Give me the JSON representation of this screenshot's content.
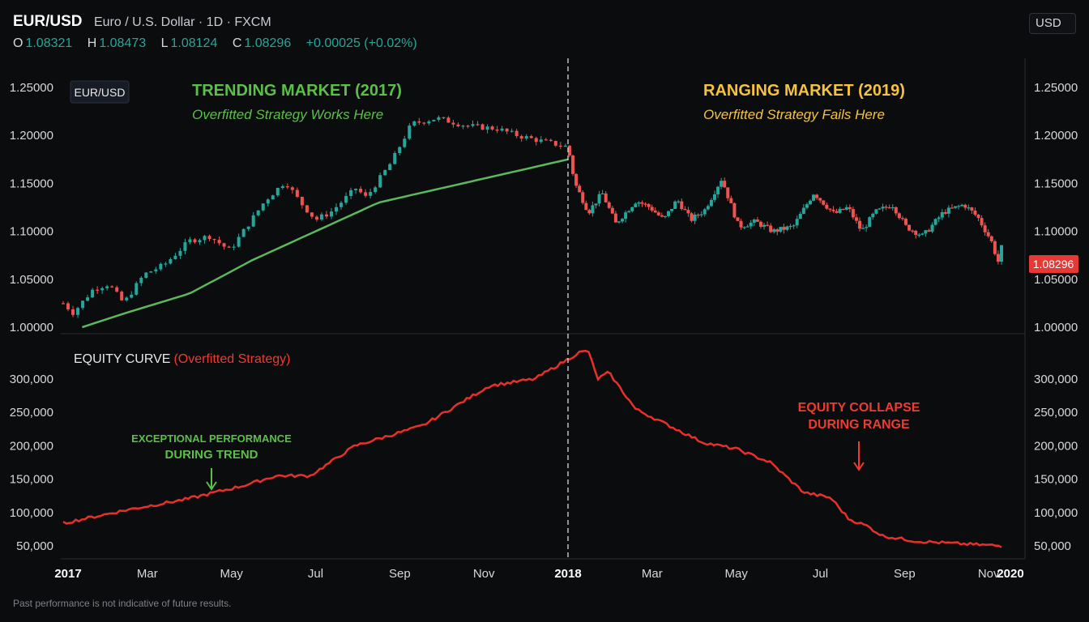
{
  "header": {
    "symbol": "EUR/USD",
    "description": "Euro / U.S. Dollar · 1D · FXCM",
    "ohlc": {
      "o_label": "O",
      "o": "1.08321",
      "h_label": "H",
      "h": "1.08473",
      "l_label": "L",
      "l": "1.08124",
      "c_label": "C",
      "c": "1.08296",
      "change": "+0.00025 (+0.02%)"
    },
    "currency": "USD"
  },
  "colors": {
    "up": "#26a69a",
    "down": "#ef5350",
    "ma": "#5cb85c",
    "equity": "#e8302a",
    "green_text": "#5cbf4a",
    "yellow_text": "#f5c242",
    "red_text": "#ee3b32",
    "background": "#0b0c0e"
  },
  "annotations": {
    "legend_tag": "EUR/USD",
    "trend_title": "TRENDING MARKET (2017)",
    "trend_sub": "Overfitted Strategy Works Here",
    "range_title": "RANGING MARKET (2019)",
    "range_sub": "Overfitted Strategy Fails Here",
    "equity_title": "EQUITY CURVE",
    "equity_sub": "(Overfitted Strategy)",
    "perf_line1": "EXCEPTIONAL PERFORMANCE",
    "perf_line2": "DURING TREND",
    "collapse_line1": "EQUITY COLLAPSE",
    "collapse_line2": "DURING RANGE",
    "last_price": "1.08296"
  },
  "footer": {
    "disclaimer": "Past performance is not indicative of future results."
  },
  "chart_data": [
    {
      "type": "candlestick",
      "title": "EUR/USD",
      "y_ticks": [
        "1.25000",
        "1.20000",
        "1.15000",
        "1.10000",
        "1.05000",
        "1.00000"
      ],
      "ylim": [
        1.0,
        1.25
      ],
      "x_ticks": [
        "2017",
        "Mar",
        "May",
        "Jul",
        "Sep",
        "Nov",
        "2018",
        "Mar",
        "May",
        "Jul",
        "Sep",
        "Nov",
        "2020"
      ],
      "divider_at": "2018",
      "price_path": [
        [
          0.0,
          1.025
        ],
        [
          0.02,
          1.015
        ],
        [
          0.06,
          1.04
        ],
        [
          0.09,
          1.045
        ],
        [
          0.12,
          1.025
        ],
        [
          0.16,
          1.055
        ],
        [
          0.2,
          1.065
        ],
        [
          0.25,
          1.09
        ],
        [
          0.29,
          1.095
        ],
        [
          0.33,
          1.08
        ],
        [
          0.4,
          1.132
        ],
        [
          0.44,
          1.152
        ],
        [
          0.47,
          1.13
        ],
        [
          0.5,
          1.112
        ],
        [
          0.53,
          1.12
        ],
        [
          0.58,
          1.145
        ],
        [
          0.6,
          1.135
        ],
        [
          0.65,
          1.172
        ],
        [
          0.69,
          1.212
        ],
        [
          0.74,
          1.218
        ],
        [
          0.8,
          1.21
        ],
        [
          0.86,
          1.207
        ],
        [
          0.9,
          1.2
        ],
        [
          0.94,
          1.195
        ],
        [
          1.0,
          1.188
        ],
        [
          1.02,
          1.15
        ],
        [
          1.06,
          1.12
        ],
        [
          1.1,
          1.14
        ],
        [
          1.14,
          1.108
        ],
        [
          1.2,
          1.132
        ],
        [
          1.24,
          1.125
        ],
        [
          1.28,
          1.112
        ],
        [
          1.32,
          1.133
        ],
        [
          1.36,
          1.112
        ],
        [
          1.4,
          1.122
        ],
        [
          1.45,
          1.155
        ],
        [
          1.5,
          1.105
        ],
        [
          1.55,
          1.11
        ],
        [
          1.6,
          1.1
        ],
        [
          1.66,
          1.105
        ],
        [
          1.72,
          1.14
        ],
        [
          1.78,
          1.118
        ],
        [
          1.82,
          1.125
        ],
        [
          1.86,
          1.1
        ],
        [
          1.9,
          1.12
        ],
        [
          1.95,
          1.128
        ],
        [
          1.99,
          1.105
        ],
        [
          2.04,
          1.095
        ],
        [
          2.1,
          1.12
        ],
        [
          2.16,
          1.128
        ],
        [
          2.2,
          1.115
        ],
        [
          2.24,
          1.09
        ],
        [
          2.26,
          1.068
        ],
        [
          2.27,
          1.083
        ]
      ],
      "moving_average": [
        [
          0.06,
          1.0
        ],
        [
          0.2,
          1.015
        ],
        [
          0.4,
          1.035
        ],
        [
          0.6,
          1.07
        ],
        [
          0.8,
          1.1
        ],
        [
          1.0,
          1.13
        ],
        [
          1.2,
          1.145
        ],
        [
          1.4,
          1.16
        ],
        [
          1.6,
          1.175
        ]
      ],
      "last_price": 1.08296
    },
    {
      "type": "line",
      "title": "EQUITY CURVE (Overfitted Strategy)",
      "y_ticks": [
        "300,000",
        "250,000",
        "200,000",
        "150,000",
        "100,000",
        "50,000"
      ],
      "ylim": [
        50000,
        300000
      ],
      "equity_path": [
        [
          0.0,
          84000
        ],
        [
          0.3,
          105000
        ],
        [
          0.55,
          120000
        ],
        [
          0.8,
          140000
        ],
        [
          0.95,
          155000
        ],
        [
          1.1,
          155000
        ],
        [
          1.3,
          200000
        ],
        [
          1.6,
          230000
        ],
        [
          1.75,
          260000
        ],
        [
          1.9,
          290000
        ],
        [
          2.1,
          300000
        ],
        [
          2.3,
          340000
        ],
        [
          2.34,
          342000
        ],
        [
          2.38,
          300000
        ],
        [
          2.43,
          310000
        ],
        [
          2.55,
          255000
        ],
        [
          2.7,
          230000
        ],
        [
          2.85,
          205000
        ],
        [
          3.0,
          195000
        ],
        [
          3.15,
          175000
        ],
        [
          3.3,
          130000
        ],
        [
          3.42,
          122000
        ],
        [
          3.5,
          90000
        ],
        [
          3.58,
          80000
        ],
        [
          3.65,
          65000
        ],
        [
          3.8,
          57000
        ],
        [
          4.0,
          53000
        ],
        [
          4.18,
          50000
        ]
      ]
    }
  ]
}
